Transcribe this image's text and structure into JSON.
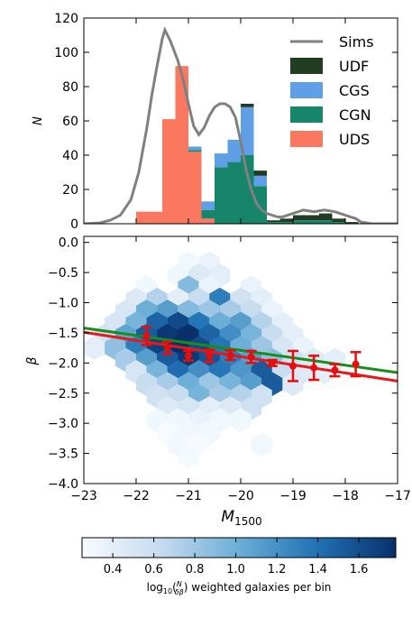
{
  "colors": {
    "sims": "#808080",
    "udf": "#233d23",
    "cgs": "#5f9fe5",
    "cgn": "#17856a",
    "uds": "#fa7760",
    "fit_red": "#e61a1a",
    "fit_green": "#1a8c1a",
    "points": "#e60d0d"
  },
  "chart_data": [
    {
      "type": "bar",
      "stacked": true,
      "ylabel": "N",
      "ylim": [
        0,
        120
      ],
      "xlim": [
        -23,
        -17
      ],
      "yticks": [
        "0",
        "20",
        "40",
        "60",
        "80",
        "100",
        "120"
      ],
      "legend": {
        "placement": "top-right",
        "entries": [
          "Sims",
          "UDF",
          "CGS",
          "CGN",
          "UDS"
        ]
      },
      "bin_edges": [
        -22.0,
        -21.75,
        -21.5,
        -21.25,
        -21.0,
        -20.75,
        -20.5,
        -20.25,
        -20.0,
        -19.75,
        -19.5,
        -19.25,
        -19.0,
        -18.75,
        -18.5,
        -18.25,
        -18.0,
        -17.75
      ],
      "series": [
        {
          "name": "UDS",
          "values": [
            7,
            7,
            61,
            92,
            42,
            3,
            0,
            0,
            0,
            0,
            0,
            0,
            0,
            0,
            0,
            0,
            0
          ]
        },
        {
          "name": "CGN",
          "values": [
            0,
            0,
            0,
            0,
            1,
            5,
            33,
            36,
            40,
            22,
            1,
            1,
            2,
            2,
            2,
            1,
            0
          ]
        },
        {
          "name": "CGS",
          "values": [
            0,
            0,
            0,
            0,
            2,
            5,
            8,
            13,
            28,
            6,
            0,
            0,
            0,
            0,
            0,
            0,
            0
          ]
        },
        {
          "name": "UDF",
          "values": [
            0,
            0,
            0,
            0,
            0,
            0,
            0,
            0,
            2,
            3,
            1,
            2,
            3,
            3,
            4,
            2,
            1
          ]
        }
      ],
      "sims_curve": {
        "name": "Sims",
        "x": [
          -23.0,
          -22.7,
          -22.5,
          -22.3,
          -22.1,
          -21.95,
          -21.8,
          -21.7,
          -21.6,
          -21.5,
          -21.45,
          -21.4,
          -21.35,
          -21.3,
          -21.2,
          -21.1,
          -21.0,
          -20.9,
          -20.8,
          -20.7,
          -20.6,
          -20.5,
          -20.4,
          -20.3,
          -20.2,
          -20.1,
          -20.0,
          -19.9,
          -19.8,
          -19.7,
          -19.6,
          -19.5,
          -19.4,
          -19.3,
          -19.2,
          -19.0,
          -18.8,
          -18.6,
          -18.4,
          -18.2,
          -18.0,
          -17.8,
          -17.7,
          -17.5,
          -17.0
        ],
        "y": [
          0,
          0.5,
          2,
          5,
          14,
          30,
          55,
          75,
          92,
          108,
          113,
          110,
          107,
          103,
          95,
          84,
          70,
          57,
          52,
          56,
          63,
          68,
          70,
          70,
          68,
          62,
          48,
          32,
          20,
          12,
          8,
          6,
          5,
          4,
          4,
          6,
          8,
          7,
          8,
          7,
          5,
          3,
          1,
          0,
          0
        ]
      }
    },
    {
      "type": "hexbin",
      "xlabel": "M_1500",
      "ylabel": "β",
      "xlim": [
        -23,
        -17
      ],
      "ylim": [
        -4.0,
        0.1
      ],
      "xticks": [
        "−23",
        "−22",
        "−21",
        "−20",
        "−19",
        "−18",
        "−17"
      ],
      "yticks": [
        "0.0",
        "−0.5",
        "−1.0",
        "−1.5",
        "−2.0",
        "−2.5",
        "−3.0",
        "−3.5",
        "−4.0"
      ],
      "hex_value_range": [
        0.25,
        1.75
      ],
      "hexes": [
        {
          "x": -21.0,
          "y": -0.35,
          "v": 0.3
        },
        {
          "x": -20.6,
          "y": -0.35,
          "v": 0.35
        },
        {
          "x": -21.2,
          "y": -0.55,
          "v": 0.3
        },
        {
          "x": -20.8,
          "y": -0.55,
          "v": 0.45
        },
        {
          "x": -20.4,
          "y": -0.55,
          "v": 0.4
        },
        {
          "x": -21.8,
          "y": -0.75,
          "v": 0.3
        },
        {
          "x": -21.0,
          "y": -0.75,
          "v": 0.9
        },
        {
          "x": -20.6,
          "y": -0.75,
          "v": 0.35
        },
        {
          "x": -19.8,
          "y": -0.75,
          "v": 0.35
        },
        {
          "x": -22.0,
          "y": -0.95,
          "v": 0.45
        },
        {
          "x": -21.6,
          "y": -0.95,
          "v": 0.7
        },
        {
          "x": -21.2,
          "y": -0.95,
          "v": 0.4
        },
        {
          "x": -20.8,
          "y": -0.95,
          "v": 0.6
        },
        {
          "x": -20.4,
          "y": -0.95,
          "v": 1.3
        },
        {
          "x": -20.0,
          "y": -0.95,
          "v": 0.55
        },
        {
          "x": -19.6,
          "y": -0.95,
          "v": 0.4
        },
        {
          "x": -22.2,
          "y": -1.15,
          "v": 0.5
        },
        {
          "x": -21.8,
          "y": -1.15,
          "v": 1.0
        },
        {
          "x": -21.4,
          "y": -1.15,
          "v": 1.1
        },
        {
          "x": -21.0,
          "y": -1.15,
          "v": 0.9
        },
        {
          "x": -20.6,
          "y": -1.15,
          "v": 0.8
        },
        {
          "x": -20.2,
          "y": -1.15,
          "v": 0.75
        },
        {
          "x": -19.8,
          "y": -1.15,
          "v": 0.6
        },
        {
          "x": -19.4,
          "y": -1.15,
          "v": 0.35
        },
        {
          "x": -22.4,
          "y": -1.35,
          "v": 0.5
        },
        {
          "x": -22.0,
          "y": -1.35,
          "v": 0.95
        },
        {
          "x": -21.6,
          "y": -1.35,
          "v": 1.45
        },
        {
          "x": -21.2,
          "y": -1.35,
          "v": 1.6
        },
        {
          "x": -20.8,
          "y": -1.35,
          "v": 1.35
        },
        {
          "x": -20.4,
          "y": -1.35,
          "v": 1.0
        },
        {
          "x": -20.0,
          "y": -1.35,
          "v": 1.1
        },
        {
          "x": -19.6,
          "y": -1.35,
          "v": 0.7
        },
        {
          "x": -19.2,
          "y": -1.35,
          "v": 0.4
        },
        {
          "x": -22.6,
          "y": -1.55,
          "v": 0.55
        },
        {
          "x": -22.2,
          "y": -1.55,
          "v": 1.05
        },
        {
          "x": -21.8,
          "y": -1.55,
          "v": 1.5
        },
        {
          "x": -21.4,
          "y": -1.55,
          "v": 1.7
        },
        {
          "x": -21.0,
          "y": -1.55,
          "v": 1.75
        },
        {
          "x": -20.6,
          "y": -1.55,
          "v": 1.45
        },
        {
          "x": -20.2,
          "y": -1.55,
          "v": 1.2
        },
        {
          "x": -19.8,
          "y": -1.55,
          "v": 0.95
        },
        {
          "x": -19.4,
          "y": -1.55,
          "v": 0.6
        },
        {
          "x": -19.0,
          "y": -1.55,
          "v": 0.4
        },
        {
          "x": -22.8,
          "y": -1.75,
          "v": 0.4
        },
        {
          "x": -22.4,
          "y": -1.75,
          "v": 0.85
        },
        {
          "x": -22.0,
          "y": -1.75,
          "v": 1.3
        },
        {
          "x": -21.6,
          "y": -1.75,
          "v": 1.65
        },
        {
          "x": -21.2,
          "y": -1.75,
          "v": 1.75
        },
        {
          "x": -20.8,
          "y": -1.75,
          "v": 1.6
        },
        {
          "x": -20.4,
          "y": -1.75,
          "v": 1.35
        },
        {
          "x": -20.0,
          "y": -1.75,
          "v": 1.0
        },
        {
          "x": -19.6,
          "y": -1.75,
          "v": 0.8
        },
        {
          "x": -19.2,
          "y": -1.75,
          "v": 0.5
        },
        {
          "x": -18.8,
          "y": -1.75,
          "v": 0.35
        },
        {
          "x": -22.2,
          "y": -1.95,
          "v": 0.75
        },
        {
          "x": -21.8,
          "y": -1.95,
          "v": 1.1
        },
        {
          "x": -21.4,
          "y": -1.95,
          "v": 1.5
        },
        {
          "x": -21.0,
          "y": -1.95,
          "v": 1.7
        },
        {
          "x": -20.6,
          "y": -1.95,
          "v": 1.55
        },
        {
          "x": -20.2,
          "y": -1.95,
          "v": 1.3
        },
        {
          "x": -19.8,
          "y": -1.95,
          "v": 1.1
        },
        {
          "x": -19.4,
          "y": -1.95,
          "v": 0.85
        },
        {
          "x": -19.0,
          "y": -1.95,
          "v": 0.55
        },
        {
          "x": -18.6,
          "y": -1.95,
          "v": 0.45
        },
        {
          "x": -18.2,
          "y": -1.95,
          "v": 0.4
        },
        {
          "x": -22.0,
          "y": -2.15,
          "v": 0.5
        },
        {
          "x": -21.6,
          "y": -2.15,
          "v": 0.95
        },
        {
          "x": -21.2,
          "y": -2.15,
          "v": 1.4
        },
        {
          "x": -20.8,
          "y": -2.15,
          "v": 1.2
        },
        {
          "x": -20.4,
          "y": -2.15,
          "v": 1.35
        },
        {
          "x": -20.0,
          "y": -2.15,
          "v": 1.15
        },
        {
          "x": -19.6,
          "y": -2.15,
          "v": 1.5
        },
        {
          "x": -19.2,
          "y": -2.15,
          "v": 0.6
        },
        {
          "x": -18.8,
          "y": -2.15,
          "v": 0.45
        },
        {
          "x": -18.4,
          "y": -2.15,
          "v": 0.4
        },
        {
          "x": -21.8,
          "y": -2.35,
          "v": 0.6
        },
        {
          "x": -21.4,
          "y": -2.35,
          "v": 0.75
        },
        {
          "x": -21.0,
          "y": -2.35,
          "v": 1.0
        },
        {
          "x": -20.6,
          "y": -2.35,
          "v": 0.8
        },
        {
          "x": -20.2,
          "y": -2.35,
          "v": 0.95
        },
        {
          "x": -19.8,
          "y": -2.35,
          "v": 1.1
        },
        {
          "x": -19.4,
          "y": -2.35,
          "v": 1.5
        },
        {
          "x": -19.0,
          "y": -2.35,
          "v": 0.45
        },
        {
          "x": -21.6,
          "y": -2.55,
          "v": 0.55
        },
        {
          "x": -21.2,
          "y": -2.55,
          "v": 0.6
        },
        {
          "x": -20.8,
          "y": -2.55,
          "v": 0.95
        },
        {
          "x": -20.4,
          "y": -2.55,
          "v": 0.75
        },
        {
          "x": -20.0,
          "y": -2.55,
          "v": 0.7
        },
        {
          "x": -19.6,
          "y": -2.55,
          "v": 0.55
        },
        {
          "x": -21.4,
          "y": -2.75,
          "v": 0.45
        },
        {
          "x": -21.0,
          "y": -2.75,
          "v": 0.5
        },
        {
          "x": -20.6,
          "y": -2.75,
          "v": 0.4
        },
        {
          "x": -20.2,
          "y": -2.75,
          "v": 0.45
        },
        {
          "x": -19.8,
          "y": -2.75,
          "v": 0.55
        },
        {
          "x": -21.6,
          "y": -2.95,
          "v": 0.3
        },
        {
          "x": -21.2,
          "y": -2.95,
          "v": 0.3
        },
        {
          "x": -20.8,
          "y": -2.95,
          "v": 0.35
        },
        {
          "x": -20.4,
          "y": -2.95,
          "v": 0.3
        },
        {
          "x": -20.0,
          "y": -2.95,
          "v": 0.3
        },
        {
          "x": -21.4,
          "y": -3.15,
          "v": 0.25
        },
        {
          "x": -21.0,
          "y": -3.15,
          "v": 0.3
        },
        {
          "x": -20.6,
          "y": -3.15,
          "v": 0.3
        },
        {
          "x": -21.2,
          "y": -3.35,
          "v": 0.28
        },
        {
          "x": -20.8,
          "y": -3.35,
          "v": 0.26
        },
        {
          "x": -19.6,
          "y": -3.35,
          "v": 0.3
        },
        {
          "x": -21.0,
          "y": -3.55,
          "v": 0.27
        }
      ],
      "binned_means": {
        "x": [
          -21.8,
          -21.4,
          -21.0,
          -20.6,
          -20.2,
          -19.8,
          -19.4,
          -19.0,
          -18.6,
          -18.2,
          -17.8
        ],
        "y": [
          -1.55,
          -1.75,
          -1.88,
          -1.88,
          -1.87,
          -1.9,
          -2.0,
          -2.05,
          -2.08,
          -2.12,
          -2.02
        ],
        "yerr_lo": [
          0.15,
          0.1,
          0.08,
          0.1,
          0.08,
          0.1,
          0.05,
          0.25,
          0.2,
          0.1,
          0.2
        ],
        "yerr_hi": [
          0.15,
          0.1,
          0.08,
          0.1,
          0.08,
          0.1,
          0.05,
          0.25,
          0.2,
          0.1,
          0.2
        ]
      },
      "fits": [
        {
          "color_key": "fit_red",
          "x": [
            -23,
            -17
          ],
          "y": [
            -1.49,
            -2.3
          ]
        },
        {
          "color_key": "fit_green",
          "x": [
            -23,
            -17
          ],
          "y": [
            -1.42,
            -2.16
          ]
        }
      ]
    }
  ],
  "colorbar": {
    "label_prefix": "log",
    "label_sub": "10",
    "label_frac_num": "N",
    "label_frac_den": "δβ",
    "label_suffix": "weighted galaxies per bin",
    "range": [
      0.25,
      1.78
    ],
    "ticks": [
      "0.4",
      "0.6",
      "0.8",
      "1.0",
      "1.2",
      "1.4",
      "1.6"
    ],
    "tick_values": [
      0.4,
      0.6,
      0.8,
      1.0,
      1.2,
      1.4,
      1.6
    ]
  }
}
